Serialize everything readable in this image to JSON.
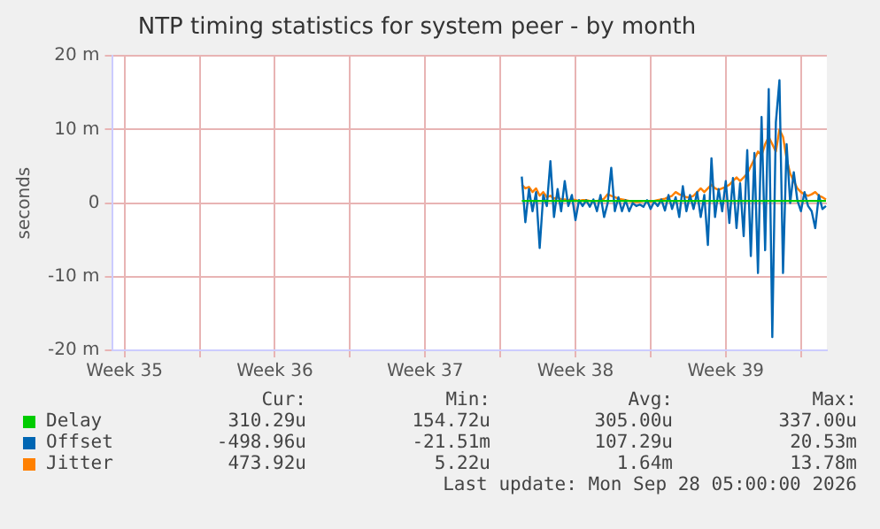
{
  "chart_data": {
    "type": "line",
    "title": "NTP timing statistics for system peer - by month",
    "ylabel": "seconds",
    "xlim": [
      "2026-08-26T22:00",
      "2026-09-29T05:00"
    ],
    "xticks": [
      {
        "value": "2026-08-27T12:00",
        "label": "Week 35"
      },
      {
        "value": "2026-08-31T00:00",
        "label": null
      },
      {
        "value": "2026-09-03T12:00",
        "label": "Week 36"
      },
      {
        "value": "2026-09-07T00:00",
        "label": null
      },
      {
        "value": "2026-09-10T12:00",
        "label": "Week 37"
      },
      {
        "value": "2026-09-14T00:00",
        "label": null
      },
      {
        "value": "2026-09-17T12:00",
        "label": "Week 38"
      },
      {
        "value": "2026-09-21T00:00",
        "label": null
      },
      {
        "value": "2026-09-24T12:00",
        "label": "Week 39"
      },
      {
        "value": "2026-09-28T00:00",
        "label": null
      }
    ],
    "ylim": [
      -20,
      20
    ],
    "yticks": [
      {
        "value": -20,
        "label": "-20 m"
      },
      {
        "value": -10,
        "label": "-10 m"
      },
      0,
      {
        "value": 10,
        "label": "10 m"
      },
      {
        "value": 20,
        "label": "20 m"
      }
    ],
    "x": [
      "2026-09-15T00:00",
      "2026-09-15T04:00",
      "2026-09-15T08:00",
      "2026-09-15T12:00",
      "2026-09-15T16:00",
      "2026-09-15T20:00",
      "2026-09-16T00:00",
      "2026-09-16T04:00",
      "2026-09-16T08:00",
      "2026-09-16T12:00",
      "2026-09-16T16:00",
      "2026-09-16T20:00",
      "2026-09-17T00:00",
      "2026-09-17T04:00",
      "2026-09-17T08:00",
      "2026-09-17T12:00",
      "2026-09-17T16:00",
      "2026-09-17T20:00",
      "2026-09-18T00:00",
      "2026-09-18T04:00",
      "2026-09-18T08:00",
      "2026-09-18T12:00",
      "2026-09-18T16:00",
      "2026-09-18T20:00",
      "2026-09-19T00:00",
      "2026-09-19T04:00",
      "2026-09-19T08:00",
      "2026-09-19T12:00",
      "2026-09-19T16:00",
      "2026-09-19T20:00",
      "2026-09-20T00:00",
      "2026-09-20T04:00",
      "2026-09-20T08:00",
      "2026-09-20T12:00",
      "2026-09-20T16:00",
      "2026-09-20T20:00",
      "2026-09-21T00:00",
      "2026-09-21T04:00",
      "2026-09-21T08:00",
      "2026-09-21T12:00",
      "2026-09-21T16:00",
      "2026-09-21T20:00",
      "2026-09-22T00:00",
      "2026-09-22T04:00",
      "2026-09-22T08:00",
      "2026-09-22T12:00",
      "2026-09-22T16:00",
      "2026-09-22T20:00",
      "2026-09-23T00:00",
      "2026-09-23T04:00",
      "2026-09-23T08:00",
      "2026-09-23T12:00",
      "2026-09-23T16:00",
      "2026-09-23T20:00",
      "2026-09-24T00:00",
      "2026-09-24T04:00",
      "2026-09-24T08:00",
      "2026-09-24T12:00",
      "2026-09-24T16:00",
      "2026-09-24T20:00",
      "2026-09-25T00:00",
      "2026-09-25T04:00",
      "2026-09-25T08:00",
      "2026-09-25T12:00",
      "2026-09-25T16:00",
      "2026-09-25T20:00",
      "2026-09-26T00:00",
      "2026-09-26T04:00",
      "2026-09-26T08:00",
      "2026-09-26T12:00",
      "2026-09-26T16:00",
      "2026-09-26T20:00",
      "2026-09-27T00:00",
      "2026-09-27T04:00",
      "2026-09-27T08:00",
      "2026-09-27T12:00",
      "2026-09-27T16:00",
      "2026-09-27T20:00",
      "2026-09-28T00:00",
      "2026-09-28T04:00",
      "2026-09-28T08:00",
      "2026-09-28T12:00",
      "2026-09-28T16:00",
      "2026-09-28T20:00",
      "2026-09-29T00:00",
      "2026-09-29T04:00"
    ],
    "series": [
      {
        "name": "Delay",
        "color": "#00cc00",
        "x": [
          "2026-09-15T00:00",
          "2026-09-29T04:00"
        ],
        "values": [
          0.3,
          0.3
        ]
      },
      {
        "name": "Offset",
        "color": "#0066b3",
        "values": [
          3.6,
          -2.6,
          1.9,
          -1.1,
          1.5,
          -6.1,
          1.1,
          -0.4,
          5.7,
          -1.9,
          1.9,
          -1.1,
          3.0,
          -0.4,
          1.1,
          -2.3,
          0.4,
          -0.4,
          0.4,
          -0.5,
          0.5,
          -1.1,
          1.1,
          -1.9,
          0,
          4.8,
          -1.1,
          0.8,
          -1.1,
          0.4,
          -1.1,
          0,
          -0.4,
          -0.2,
          -0.5,
          0.4,
          -0.8,
          0.2,
          -0.4,
          0.5,
          -1.0,
          1.1,
          -0.8,
          0.8,
          -1.9,
          2.3,
          -1.1,
          1.1,
          -0.8,
          1.5,
          -1.9,
          1.1,
          -5.7,
          6.1,
          -1.9,
          1.9,
          -1.1,
          3.0,
          -2.7,
          3.4,
          -3.4,
          2.7,
          -4.5,
          7.2,
          -7.2,
          6.8,
          -9.5,
          11.7,
          -6.4,
          15.5,
          -18.2,
          11.0,
          16.7,
          -9.5,
          8.0,
          0,
          4.2,
          0.4,
          -1.1,
          1.5,
          -0.4,
          -1.1,
          -3.4,
          1.1,
          -0.8,
          -0.4
        ]
      },
      {
        "name": "Jitter",
        "color": "#ff8000",
        "values": [
          2.5,
          2,
          2.2,
          1.5,
          2,
          1,
          1.5,
          0.8,
          1,
          0.6,
          0.8,
          0.5,
          0.5,
          0.4,
          0.5,
          0.4,
          0.3,
          0.4,
          0.4,
          0.3,
          0.3,
          0.3,
          0.4,
          0.6,
          1.2,
          1,
          0.8,
          0.6,
          0.5,
          0.4,
          0.3,
          0.2,
          0.2,
          0.2,
          0.3,
          0.3,
          0.2,
          0.3,
          0.4,
          0.5,
          0.6,
          0.8,
          1,
          1.5,
          1.2,
          1,
          0.8,
          0.8,
          1,
          1.5,
          2,
          1.5,
          2,
          2.5,
          2,
          1.8,
          2,
          2.2,
          2.5,
          3,
          3.5,
          3,
          3.5,
          4,
          5,
          6,
          7,
          6.5,
          8,
          9,
          8,
          7,
          10,
          9,
          6,
          4,
          3,
          2,
          1.5,
          1.2,
          1,
          1.2,
          1.5,
          1,
          0.8,
          0.5
        ]
      }
    ],
    "grid": true,
    "legend": "bottom",
    "marker": "none",
    "line_style": "solid",
    "annotations": [
      "Cur:",
      "Min:",
      "Avg:",
      "Max:",
      "310.29u",
      "154.72u",
      "305.00u",
      "337.00u",
      "-498.96u",
      "-21.51m",
      "107.29u",
      "20.53m",
      "473.92u",
      "5.22u",
      "1.64m",
      "13.78m",
      "Last update: Mon Sep 28 05:00:00 2026"
    ]
  }
}
